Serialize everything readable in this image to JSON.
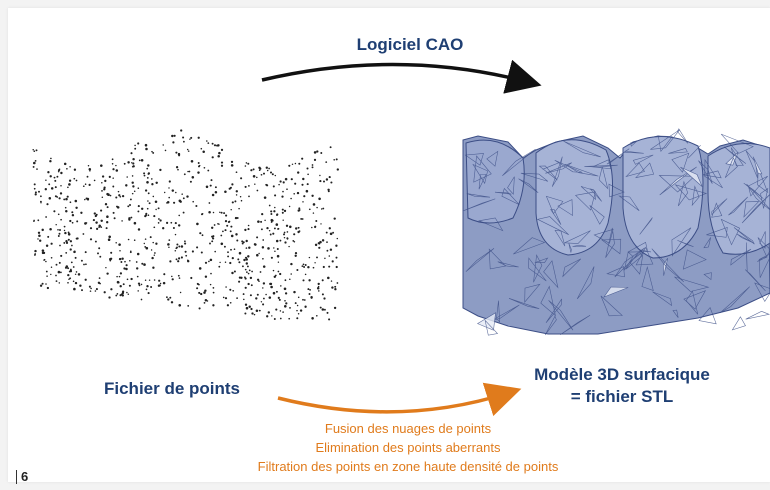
{
  "diagram": {
    "top_arrow_label": "Logiciel CAO",
    "left_label": "Fichier de points",
    "right_label_line1": "Modèle 3D surfacique",
    "right_label_line2": "= fichier STL",
    "steps": [
      "Fusion des nuages de points",
      "Elimination des points aberrants",
      "Filtration des points en zone haute densité de points"
    ],
    "page_number": "6"
  },
  "colors": {
    "navy": "#1f3f73",
    "orange": "#e07b1c",
    "mesh_fill": "#8d9cc4",
    "mesh_edge": "#3c4e86"
  }
}
